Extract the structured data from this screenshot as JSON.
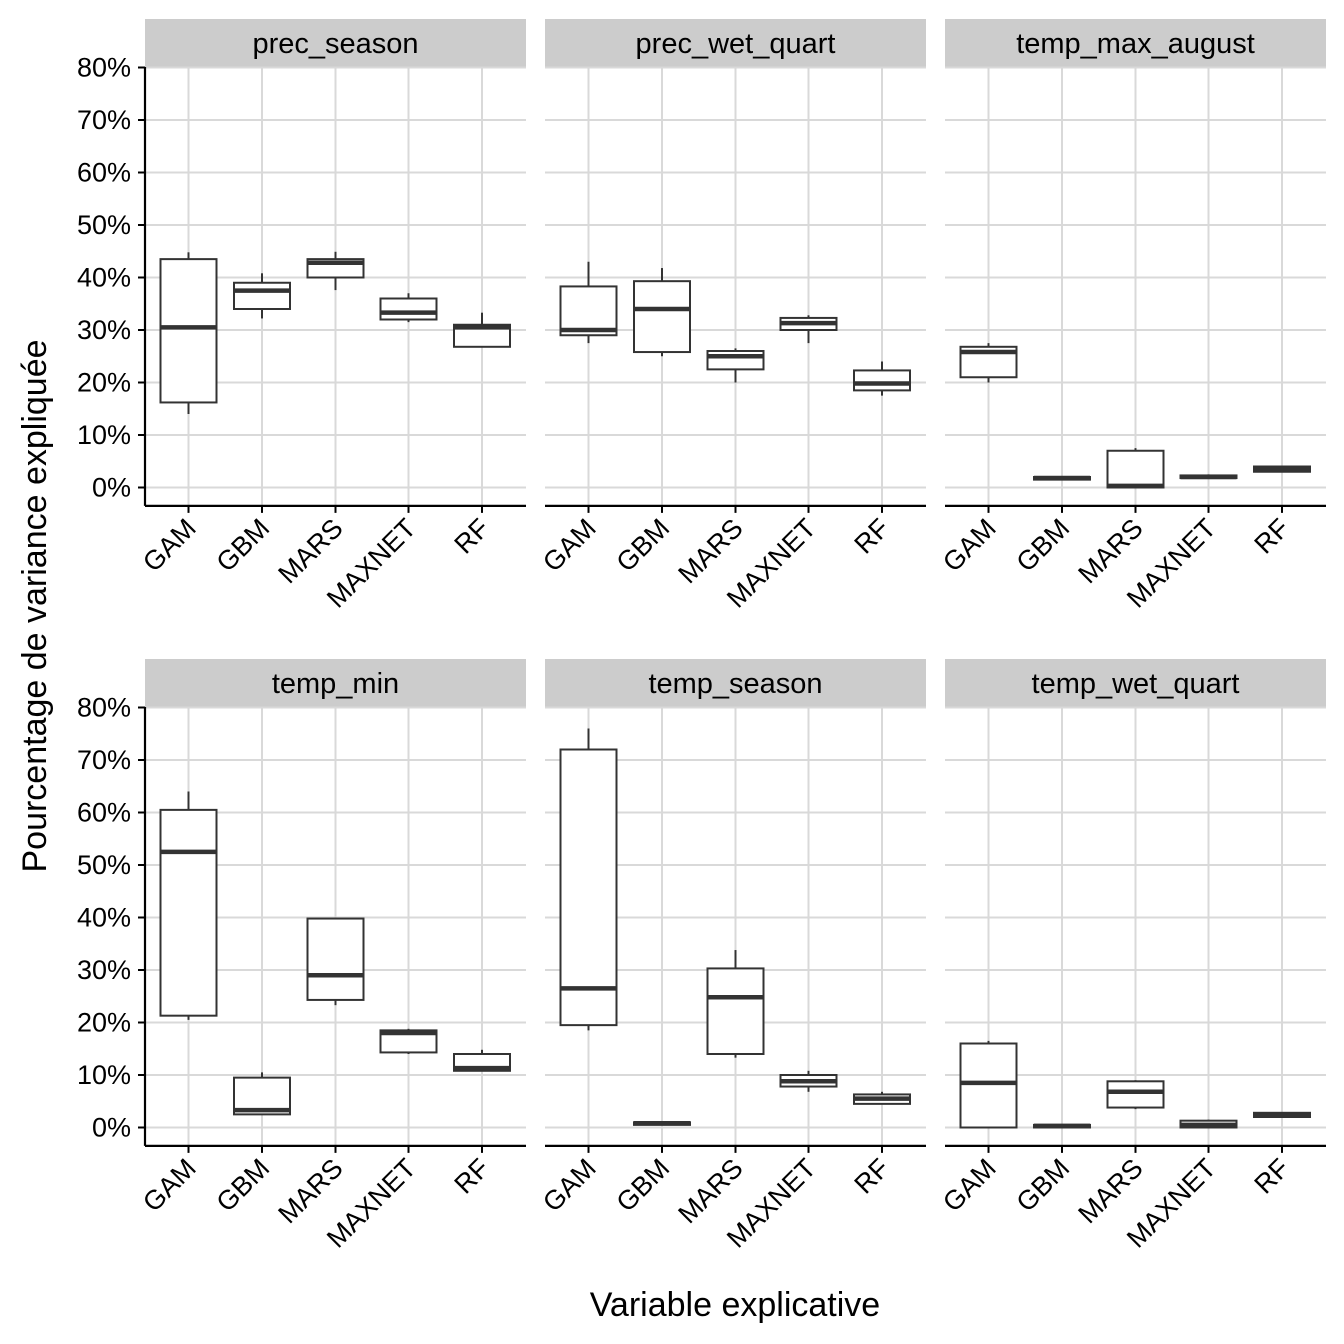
{
  "chart_data": {
    "type": "boxplot",
    "facet_layout": "2 rows x 3 columns",
    "xlabel": "Variable explicative",
    "ylabel": "Pourcentage de variance expliquée",
    "ylim": [
      -3.5,
      80
    ],
    "yticks": [
      0,
      10,
      20,
      30,
      40,
      50,
      60,
      70,
      80
    ],
    "ytick_labels": [
      "0%",
      "10%",
      "20%",
      "30%",
      "40%",
      "50%",
      "60%",
      "70%",
      "80%"
    ],
    "categories": [
      "GAM",
      "GBM",
      "MARS",
      "MAXNET",
      "RF"
    ],
    "grid": true,
    "colors": {
      "strip_bg": "#cccccc",
      "grid": "#d9d9d9",
      "box_stroke": "#333333",
      "axis": "#000000"
    },
    "panels": [
      {
        "facet": "prec_season",
        "boxes": [
          {
            "category": "GAM",
            "whisker_low": 14.0,
            "q1": 16.2,
            "median": 30.5,
            "q3": 43.5,
            "whisker_high": 44.8
          },
          {
            "category": "GBM",
            "whisker_low": 32.2,
            "q1": 34.0,
            "median": 37.5,
            "q3": 39.0,
            "whisker_high": 40.8
          },
          {
            "category": "MARS",
            "whisker_low": 37.6,
            "q1": 40.0,
            "median": 42.8,
            "q3": 43.5,
            "whisker_high": 44.9
          },
          {
            "category": "MAXNET",
            "whisker_low": 31.5,
            "q1": 32.0,
            "median": 33.3,
            "q3": 36.0,
            "whisker_high": 37.0
          },
          {
            "category": "RF",
            "whisker_low": 26.8,
            "q1": 26.8,
            "median": 30.5,
            "q3": 31.0,
            "whisker_high": 33.3
          }
        ]
      },
      {
        "facet": "prec_wet_quart",
        "boxes": [
          {
            "category": "GAM",
            "whisker_low": 27.5,
            "q1": 29.0,
            "median": 30.0,
            "q3": 38.3,
            "whisker_high": 43.0
          },
          {
            "category": "GBM",
            "whisker_low": 25.0,
            "q1": 25.8,
            "median": 34.0,
            "q3": 39.3,
            "whisker_high": 41.8
          },
          {
            "category": "MARS",
            "whisker_low": 20.0,
            "q1": 22.5,
            "median": 25.0,
            "q3": 26.0,
            "whisker_high": 26.5
          },
          {
            "category": "MAXNET",
            "whisker_low": 27.5,
            "q1": 30.0,
            "median": 31.3,
            "q3": 32.3,
            "whisker_high": 32.8
          },
          {
            "category": "RF",
            "whisker_low": 17.5,
            "q1": 18.5,
            "median": 19.8,
            "q3": 22.3,
            "whisker_high": 24.0
          }
        ]
      },
      {
        "facet": "temp_max_august",
        "boxes": [
          {
            "category": "GAM",
            "whisker_low": 20.0,
            "q1": 21.0,
            "median": 25.8,
            "q3": 26.8,
            "whisker_high": 27.5
          },
          {
            "category": "GBM",
            "whisker_low": 1.5,
            "q1": 1.5,
            "median": 1.8,
            "q3": 2.0,
            "whisker_high": 2.0
          },
          {
            "category": "MARS",
            "whisker_low": 0.0,
            "q1": 0.0,
            "median": 0.3,
            "q3": 7.0,
            "whisker_high": 7.5
          },
          {
            "category": "MAXNET",
            "whisker_low": 1.7,
            "q1": 1.8,
            "median": 2.0,
            "q3": 2.3,
            "whisker_high": 2.5
          },
          {
            "category": "RF",
            "whisker_low": 3.0,
            "q1": 3.0,
            "median": 3.5,
            "q3": 4.0,
            "whisker_high": 4.0
          }
        ]
      },
      {
        "facet": "temp_min",
        "boxes": [
          {
            "category": "GAM",
            "whisker_low": 20.5,
            "q1": 21.3,
            "median": 52.5,
            "q3": 60.5,
            "whisker_high": 64.0
          },
          {
            "category": "GBM",
            "whisker_low": 2.5,
            "q1": 2.5,
            "median": 3.3,
            "q3": 9.5,
            "whisker_high": 10.5
          },
          {
            "category": "MARS",
            "whisker_low": 23.3,
            "q1": 24.3,
            "median": 29.0,
            "q3": 39.8,
            "whisker_high": 40.0
          },
          {
            "category": "MAXNET",
            "whisker_low": 14.0,
            "q1": 14.3,
            "median": 18.0,
            "q3": 18.5,
            "whisker_high": 18.8
          },
          {
            "category": "RF",
            "whisker_low": 10.8,
            "q1": 10.8,
            "median": 11.3,
            "q3": 14.0,
            "whisker_high": 14.8
          }
        ]
      },
      {
        "facet": "temp_season",
        "boxes": [
          {
            "category": "GAM",
            "whisker_low": 18.5,
            "q1": 19.5,
            "median": 26.5,
            "q3": 72.0,
            "whisker_high": 76.0
          },
          {
            "category": "GBM",
            "whisker_low": 0.5,
            "q1": 0.5,
            "median": 0.8,
            "q3": 1.0,
            "whisker_high": 1.0
          },
          {
            "category": "MARS",
            "whisker_low": 13.3,
            "q1": 14.0,
            "median": 24.8,
            "q3": 30.3,
            "whisker_high": 33.8
          },
          {
            "category": "MAXNET",
            "whisker_low": 6.8,
            "q1": 7.8,
            "median": 8.8,
            "q3": 10.0,
            "whisker_high": 10.8
          },
          {
            "category": "RF",
            "whisker_low": 4.5,
            "q1": 4.5,
            "median": 5.5,
            "q3": 6.3,
            "whisker_high": 6.8
          }
        ]
      },
      {
        "facet": "temp_wet_quart",
        "boxes": [
          {
            "category": "GAM",
            "whisker_low": 0.0,
            "q1": 0.0,
            "median": 8.5,
            "q3": 16.0,
            "whisker_high": 16.5
          },
          {
            "category": "GBM",
            "whisker_low": 0.0,
            "q1": 0.0,
            "median": 0.3,
            "q3": 0.5,
            "whisker_high": 0.5
          },
          {
            "category": "MARS",
            "whisker_low": 3.5,
            "q1": 3.8,
            "median": 6.8,
            "q3": 8.8,
            "whisker_high": 9.0
          },
          {
            "category": "MAXNET",
            "whisker_low": 0.0,
            "q1": 0.0,
            "median": 0.5,
            "q3": 1.3,
            "whisker_high": 1.5
          },
          {
            "category": "RF",
            "whisker_low": 2.0,
            "q1": 2.0,
            "median": 2.3,
            "q3": 2.8,
            "whisker_high": 2.8
          }
        ]
      }
    ]
  }
}
